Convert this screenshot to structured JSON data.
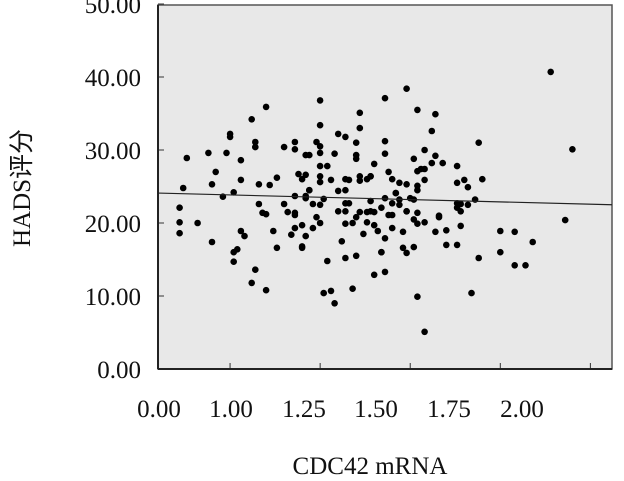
{
  "chart_data": {
    "type": "scatter",
    "title": "",
    "xlabel": "CDC42 mRNA",
    "ylabel": "HADS评分",
    "xlim": [
      0.8,
      2.06
    ],
    "ylim": [
      0,
      50
    ],
    "x_ticks": [
      "0.00",
      "1.00",
      "1.25",
      "1.50",
      "1.75",
      "2.00"
    ],
    "y_ticks": [
      "50.00",
      "40.00",
      "30.00",
      "20.00",
      "10.00",
      "0.00"
    ],
    "grid": false,
    "background": "#e8e8e8",
    "point_color": "#000000",
    "fit_line": {
      "x": [
        0.8,
        2.06
      ],
      "y": [
        24.1,
        22.5
      ]
    },
    "points": [
      [
        1.25,
        36.8
      ],
      [
        1.1,
        35.9
      ],
      [
        1.36,
        35.1
      ],
      [
        1.06,
        34.2
      ],
      [
        1.25,
        33.4
      ],
      [
        1.36,
        33.0
      ],
      [
        1.0,
        32.2
      ],
      [
        1.0,
        31.8
      ],
      [
        1.3,
        32.2
      ],
      [
        1.32,
        31.8
      ],
      [
        1.07,
        31.1
      ],
      [
        1.07,
        30.4
      ],
      [
        1.15,
        30.4
      ],
      [
        1.18,
        31.1
      ],
      [
        1.18,
        30.1
      ],
      [
        1.24,
        31.1
      ],
      [
        1.25,
        30.5
      ],
      [
        1.25,
        29.6
      ],
      [
        1.35,
        31.0
      ],
      [
        1.35,
        29.3
      ],
      [
        1.35,
        28.8
      ],
      [
        0.88,
        28.9
      ],
      [
        0.94,
        29.6
      ],
      [
        0.99,
        29.6
      ],
      [
        1.03,
        28.6
      ],
      [
        1.21,
        29.3
      ],
      [
        1.22,
        29.3
      ],
      [
        1.29,
        29.5
      ],
      [
        1.4,
        28.1
      ],
      [
        1.25,
        27.8
      ],
      [
        1.27,
        27.8
      ],
      [
        0.96,
        27.0
      ],
      [
        0.95,
        25.3
      ],
      [
        1.03,
        25.9
      ],
      [
        1.08,
        25.3
      ],
      [
        1.11,
        25.2
      ],
      [
        1.13,
        26.2
      ],
      [
        1.19,
        26.7
      ],
      [
        1.21,
        26.6
      ],
      [
        1.2,
        26.0
      ],
      [
        1.25,
        26.4
      ],
      [
        1.25,
        25.6
      ],
      [
        1.28,
        25.9
      ],
      [
        1.32,
        26.0
      ],
      [
        1.33,
        25.9
      ],
      [
        1.36,
        26.4
      ],
      [
        1.36,
        25.8
      ],
      [
        1.38,
        26.0
      ],
      [
        1.39,
        26.4
      ],
      [
        0.87,
        24.8
      ],
      [
        1.89,
        40.7
      ],
      [
        1.95,
        30.1
      ],
      [
        1.49,
        38.4
      ],
      [
        1.43,
        37.1
      ],
      [
        1.52,
        35.5
      ],
      [
        1.57,
        34.9
      ],
      [
        1.56,
        32.6
      ],
      [
        1.43,
        31.2
      ],
      [
        1.69,
        31.0
      ],
      [
        1.43,
        29.5
      ],
      [
        1.54,
        30.0
      ],
      [
        1.57,
        29.2
      ],
      [
        1.51,
        28.8
      ],
      [
        1.56,
        28.2
      ],
      [
        1.59,
        28.2
      ],
      [
        1.63,
        27.8
      ],
      [
        1.52,
        27.1
      ],
      [
        1.53,
        27.4
      ],
      [
        1.54,
        27.4
      ],
      [
        1.44,
        27.0
      ],
      [
        1.45,
        26.0
      ],
      [
        1.47,
        25.5
      ],
      [
        1.49,
        25.3
      ],
      [
        1.52,
        25.1
      ],
      [
        1.54,
        25.9
      ],
      [
        1.63,
        25.5
      ],
      [
        1.65,
        25.9
      ],
      [
        1.66,
        24.9
      ],
      [
        1.7,
        26.0
      ],
      [
        1.39,
        26.4
      ],
      [
        1.3,
        24.4
      ],
      [
        1.32,
        24.5
      ],
      [
        1.22,
        24.5
      ],
      [
        1.26,
        23.3
      ],
      [
        1.23,
        22.6
      ],
      [
        1.25,
        22.5
      ],
      [
        1.32,
        22.7
      ],
      [
        1.33,
        22.7
      ],
      [
        1.3,
        21.6
      ],
      [
        1.32,
        21.6
      ],
      [
        1.39,
        23.0
      ],
      [
        1.43,
        23.4
      ],
      [
        1.45,
        22.7
      ],
      [
        1.47,
        23.2
      ],
      [
        1.46,
        24.1
      ],
      [
        1.52,
        24.5
      ],
      [
        1.5,
        23.4
      ],
      [
        1.51,
        23.2
      ],
      [
        1.49,
        21.6
      ],
      [
        1.42,
        22.1
      ],
      [
        1.39,
        21.6
      ],
      [
        1.38,
        21.5
      ],
      [
        1.44,
        21.1
      ],
      [
        1.47,
        22.5
      ],
      [
        1.52,
        21.4
      ],
      [
        1.58,
        20.8
      ],
      [
        1.63,
        22.7
      ],
      [
        1.66,
        22.5
      ],
      [
        1.63,
        22.1
      ],
      [
        1.36,
        21.5
      ],
      [
        1.35,
        20.8
      ],
      [
        0.86,
        22.1
      ],
      [
        1.01,
        24.2
      ],
      [
        0.98,
        23.6
      ],
      [
        1.08,
        22.6
      ],
      [
        1.09,
        21.4
      ],
      [
        1.1,
        21.2
      ],
      [
        1.15,
        22.6
      ],
      [
        1.16,
        21.5
      ],
      [
        1.18,
        21.4
      ],
      [
        1.18,
        23.7
      ],
      [
        1.21,
        23.7
      ],
      [
        1.21,
        23.4
      ],
      [
        1.22,
        24.5
      ],
      [
        1.24,
        20.8
      ],
      [
        0.86,
        20.1
      ],
      [
        0.86,
        18.6
      ],
      [
        0.91,
        20.0
      ],
      [
        0.95,
        17.4
      ],
      [
        1.18,
        21.1
      ],
      [
        1.25,
        20.0
      ],
      [
        1.23,
        19.3
      ],
      [
        1.2,
        19.7
      ],
      [
        1.18,
        19.3
      ],
      [
        1.17,
        18.4
      ],
      [
        1.21,
        18.2
      ],
      [
        1.2,
        16.8
      ],
      [
        1.2,
        16.6
      ],
      [
        1.12,
        18.9
      ],
      [
        1.13,
        16.6
      ],
      [
        1.03,
        18.9
      ],
      [
        1.04,
        18.2
      ],
      [
        1.01,
        16.0
      ],
      [
        1.02,
        16.4
      ],
      [
        1.01,
        14.7
      ],
      [
        1.07,
        13.6
      ],
      [
        1.06,
        11.8
      ],
      [
        1.1,
        10.8
      ],
      [
        1.27,
        14.8
      ],
      [
        1.31,
        17.5
      ],
      [
        1.32,
        15.2
      ],
      [
        1.35,
        15.5
      ],
      [
        1.42,
        16.0
      ],
      [
        1.4,
        12.9
      ],
      [
        1.26,
        10.4
      ],
      [
        1.28,
        10.7
      ],
      [
        1.29,
        9.0
      ],
      [
        1.34,
        11.0
      ],
      [
        1.32,
        19.9
      ],
      [
        1.34,
        20.0
      ],
      [
        1.37,
        18.5
      ],
      [
        1.41,
        18.9
      ],
      [
        1.38,
        20.1
      ],
      [
        1.4,
        19.7
      ],
      [
        1.93,
        20.4
      ],
      [
        1.75,
        18.9
      ],
      [
        1.79,
        18.8
      ],
      [
        1.84,
        17.4
      ],
      [
        1.75,
        16.0
      ],
      [
        1.79,
        14.2
      ],
      [
        1.82,
        14.2
      ],
      [
        1.69,
        15.2
      ],
      [
        1.67,
        10.4
      ],
      [
        1.52,
        9.9
      ],
      [
        1.54,
        5.1
      ],
      [
        1.6,
        19.0
      ],
      [
        1.57,
        18.8
      ],
      [
        1.6,
        17.0
      ],
      [
        1.63,
        17.0
      ],
      [
        1.58,
        21.0
      ],
      [
        1.64,
        19.6
      ],
      [
        1.64,
        21.6
      ],
      [
        1.64,
        22.6
      ],
      [
        1.68,
        23.2
      ],
      [
        1.43,
        13.3
      ],
      [
        1.42,
        16.0
      ],
      [
        1.43,
        17.9
      ],
      [
        1.48,
        18.8
      ],
      [
        1.48,
        16.6
      ],
      [
        1.49,
        15.9
      ],
      [
        1.51,
        16.7
      ],
      [
        1.45,
        19.3
      ],
      [
        1.4,
        21.5
      ],
      [
        1.45,
        21.1
      ],
      [
        1.49,
        21.6
      ],
      [
        1.51,
        20.5
      ],
      [
        1.52,
        19.9
      ],
      [
        1.54,
        20.1
      ],
      [
        1.46,
        24.1
      ]
    ]
  }
}
